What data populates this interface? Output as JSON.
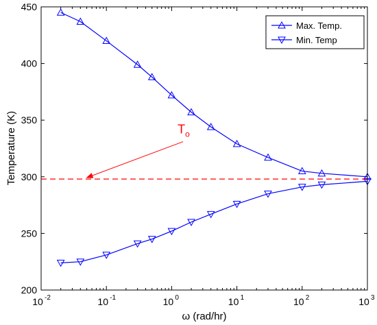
{
  "chart_data": {
    "type": "line",
    "xlabel": "ω (rad/hr)",
    "ylabel": "Temperature (K)",
    "xscale": "log",
    "xlim": [
      0.01,
      1000
    ],
    "ylim": [
      200,
      450
    ],
    "x_ticks": [
      {
        "value": 0.01,
        "base": "10",
        "exp": "-2"
      },
      {
        "value": 0.1,
        "base": "10",
        "exp": "-1"
      },
      {
        "value": 1,
        "base": "10",
        "exp": "0"
      },
      {
        "value": 10,
        "base": "10",
        "exp": "1"
      },
      {
        "value": 100,
        "base": "10",
        "exp": "2"
      },
      {
        "value": 1000,
        "base": "10",
        "exp": "3"
      }
    ],
    "y_ticks": [
      200,
      250,
      300,
      350,
      400,
      450
    ],
    "grid": false,
    "legend_position": "top-right",
    "series": [
      {
        "name": "Max. Temp.",
        "color": "#0000ff",
        "marker": "triangle-up",
        "x": [
          0.02,
          0.04,
          0.1,
          0.3,
          0.5,
          1,
          2,
          4,
          10,
          30,
          100,
          200,
          1000
        ],
        "y": [
          445,
          437,
          420,
          399,
          388,
          372,
          357,
          344,
          329,
          317,
          305,
          303,
          300
        ]
      },
      {
        "name": "Min. Temp",
        "color": "#0000ff",
        "marker": "triangle-down",
        "x": [
          0.02,
          0.04,
          0.1,
          0.3,
          0.5,
          1,
          2,
          4,
          10,
          30,
          100,
          200,
          1000
        ],
        "y": [
          224,
          225,
          231,
          241,
          245,
          252,
          260,
          267,
          276,
          285,
          291,
          293,
          296
        ]
      }
    ],
    "reference_line": {
      "y": 298,
      "color": "#ff0000",
      "style": "dashed"
    },
    "annotation": {
      "label": "T",
      "subscript": "o",
      "color": "#ff0000",
      "from": {
        "x": 1.5,
        "y": 331
      },
      "to": {
        "x": 0.05,
        "y": 298
      }
    }
  }
}
